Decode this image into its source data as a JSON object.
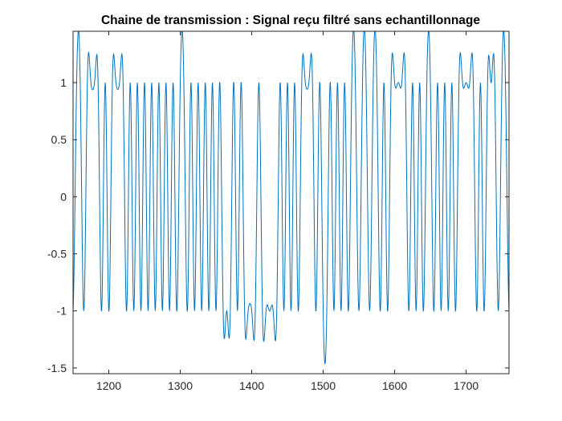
{
  "chart_data": {
    "type": "line",
    "title": "Chaine de transmission : Signal reçu filtré sans echantillonnage",
    "xlabel": "",
    "ylabel": "",
    "xlim": [
      1150,
      1760
    ],
    "ylim": [
      -1.55,
      1.45
    ],
    "x_ticks": [
      1200,
      1300,
      1400,
      1500,
      1600,
      1700
    ],
    "x_tick_labels": [
      "1200",
      "1300",
      "1400",
      "1500",
      "1600",
      "1700"
    ],
    "y_ticks": [
      1,
      0.5,
      0,
      -0.5,
      -1,
      -1.5
    ],
    "y_tick_labels": [
      "1",
      "0.5",
      "0",
      "-0.5",
      "-1",
      "-1.5"
    ],
    "grid": false,
    "legend": "none",
    "line_color": "#0072BD",
    "bits_per_symbol_samples": 5,
    "series": [
      {
        "x_start": 1150,
        "x_step": 5,
        "symbols": [
          -1,
          1,
          1,
          -1,
          1,
          1,
          1,
          1,
          -1,
          1,
          -1,
          1,
          1,
          1,
          1,
          -1,
          1,
          -1,
          1,
          -1,
          1,
          -1,
          1,
          -1,
          1,
          -1,
          1,
          -1,
          1,
          -1,
          1,
          1,
          -1,
          1,
          -1,
          1,
          -1,
          1,
          -1,
          1,
          -1,
          1,
          -1,
          -1,
          -1,
          1,
          -1,
          1,
          -1,
          -1,
          -1,
          -1,
          1,
          -1,
          -1,
          -1,
          -1,
          -1,
          1,
          -1,
          1,
          -1,
          1,
          -1,
          1,
          1,
          1,
          1,
          -1,
          1,
          -1,
          -1,
          1,
          -1,
          1,
          -1,
          1,
          -1,
          1,
          1,
          -1,
          1,
          1,
          -1,
          1,
          1,
          -1,
          1,
          -1,
          1,
          1,
          1,
          1,
          1,
          -1,
          1,
          -1,
          1,
          -1,
          1,
          1,
          -1,
          1,
          -1,
          1,
          -1,
          1,
          -1,
          1,
          1,
          1,
          1,
          1,
          -1,
          1,
          -1,
          1,
          1,
          1,
          -1,
          1,
          1,
          -1
        ]
      }
    ]
  }
}
